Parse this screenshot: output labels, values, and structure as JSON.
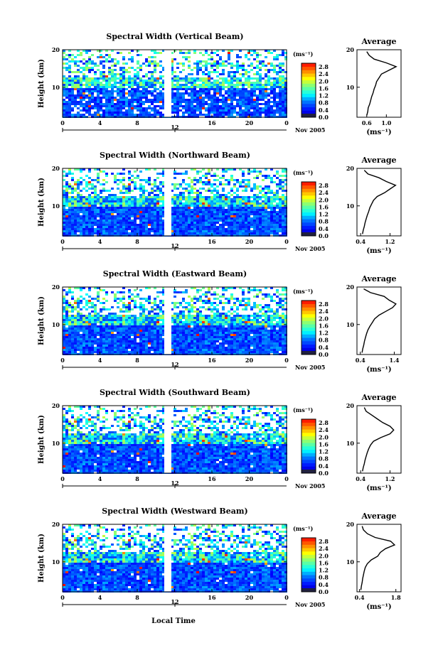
{
  "figure": {
    "xlabel": "Local Time",
    "date_label": "Nov 2005",
    "day_marker": "12",
    "colorbar_unit": "(ms⁻¹)",
    "avg_unit": "(ms⁻¹)"
  },
  "chart_data": [
    {
      "type": "heatmap",
      "title": "Spectral Width (Vertical Beam)",
      "ylabel": "Height (km)",
      "xticks": [
        "0",
        "4",
        "8",
        "12",
        "16",
        "20",
        "0"
      ],
      "yticks": [
        "10",
        "20"
      ],
      "ylim": [
        2,
        20
      ],
      "colorbar": {
        "ticks": [
          "0.0",
          "0.4",
          "0.8",
          "1.2",
          "1.6",
          "2.0",
          "2.4",
          "2.8"
        ],
        "range": [
          0.0,
          3.0
        ]
      },
      "average": {
        "title": "Average",
        "xticks": [
          "0.6",
          "1.0"
        ],
        "xlim": [
          0.4,
          1.3
        ],
        "profile": [
          [
            2.5,
            0.6
          ],
          [
            3.5,
            0.62
          ],
          [
            4.5,
            0.63
          ],
          [
            5.5,
            0.66
          ],
          [
            6.5,
            0.68
          ],
          [
            7.5,
            0.7
          ],
          [
            8.5,
            0.73
          ],
          [
            9.5,
            0.75
          ],
          [
            10.5,
            0.78
          ],
          [
            11.5,
            0.8
          ],
          [
            12.5,
            0.85
          ],
          [
            13.5,
            0.9
          ],
          [
            14.5,
            1.05
          ],
          [
            15.5,
            1.2
          ],
          [
            16.5,
            1.0
          ],
          [
            17.5,
            0.75
          ],
          [
            18.5,
            0.65
          ],
          [
            19.5,
            0.6
          ]
        ]
      }
    },
    {
      "type": "heatmap",
      "title": "Spectral Width (Northward Beam)",
      "ylabel": "Height (km)",
      "xticks": [
        "0",
        "4",
        "8",
        "12",
        "16",
        "20",
        "0"
      ],
      "yticks": [
        "10",
        "20"
      ],
      "ylim": [
        2,
        20
      ],
      "colorbar": {
        "ticks": [
          "0.0",
          "0.4",
          "0.8",
          "1.2",
          "1.6",
          "2.0",
          "2.4",
          "2.8"
        ],
        "range": [
          0.0,
          3.0
        ]
      },
      "average": {
        "title": "Average",
        "xticks": [
          "0.4",
          "1.2"
        ],
        "xlim": [
          0.3,
          1.5
        ],
        "profile": [
          [
            2.5,
            0.45
          ],
          [
            3.5,
            0.47
          ],
          [
            4.5,
            0.5
          ],
          [
            5.5,
            0.52
          ],
          [
            6.5,
            0.55
          ],
          [
            7.5,
            0.58
          ],
          [
            8.5,
            0.62
          ],
          [
            9.5,
            0.65
          ],
          [
            10.5,
            0.7
          ],
          [
            11.5,
            0.75
          ],
          [
            12.5,
            0.85
          ],
          [
            13.5,
            1.05
          ],
          [
            14.5,
            1.2
          ],
          [
            15.5,
            1.35
          ],
          [
            16.5,
            1.1
          ],
          [
            17.5,
            0.9
          ],
          [
            18.5,
            0.6
          ],
          [
            19.5,
            0.5
          ]
        ]
      }
    },
    {
      "type": "heatmap",
      "title": "Spectral Width (Eastward Beam)",
      "ylabel": "Height (km)",
      "xticks": [
        "0",
        "4",
        "8",
        "12",
        "16",
        "20",
        "0"
      ],
      "yticks": [
        "10",
        "20"
      ],
      "ylim": [
        2,
        20
      ],
      "colorbar": {
        "ticks": [
          "0.0",
          "0.4",
          "0.8",
          "1.2",
          "1.6",
          "2.0",
          "2.4",
          "2.8"
        ],
        "range": [
          0.0,
          3.0
        ]
      },
      "average": {
        "title": "Average",
        "xticks": [
          "0.4",
          "1.4"
        ],
        "xlim": [
          0.3,
          1.6
        ],
        "profile": [
          [
            2.5,
            0.45
          ],
          [
            3.5,
            0.47
          ],
          [
            4.5,
            0.5
          ],
          [
            5.5,
            0.52
          ],
          [
            6.5,
            0.55
          ],
          [
            7.5,
            0.58
          ],
          [
            8.5,
            0.62
          ],
          [
            9.5,
            0.68
          ],
          [
            10.5,
            0.75
          ],
          [
            11.5,
            0.82
          ],
          [
            12.5,
            0.95
          ],
          [
            13.5,
            1.15
          ],
          [
            14.5,
            1.35
          ],
          [
            15.5,
            1.45
          ],
          [
            16.5,
            1.25
          ],
          [
            17.5,
            1.1
          ],
          [
            18.5,
            0.7
          ],
          [
            19.5,
            0.5
          ]
        ]
      }
    },
    {
      "type": "heatmap",
      "title": "Spectral Width (Southward Beam)",
      "ylabel": "Height (km)",
      "xticks": [
        "0",
        "4",
        "8",
        "12",
        "16",
        "20",
        "0"
      ],
      "yticks": [
        "10",
        "20"
      ],
      "ylim": [
        2,
        20
      ],
      "colorbar": {
        "ticks": [
          "0.0",
          "0.4",
          "0.8",
          "1.2",
          "1.6",
          "2.0",
          "2.4",
          "2.8"
        ],
        "range": [
          0.0,
          3.0
        ]
      },
      "average": {
        "title": "Average",
        "xticks": [
          "0.4",
          "1.2"
        ],
        "xlim": [
          0.3,
          1.5
        ],
        "profile": [
          [
            2.5,
            0.45
          ],
          [
            3.5,
            0.47
          ],
          [
            4.5,
            0.5
          ],
          [
            5.5,
            0.52
          ],
          [
            6.5,
            0.55
          ],
          [
            7.5,
            0.58
          ],
          [
            8.5,
            0.62
          ],
          [
            9.5,
            0.67
          ],
          [
            10.5,
            0.75
          ],
          [
            11.5,
            0.95
          ],
          [
            12.5,
            1.2
          ],
          [
            13.5,
            1.3
          ],
          [
            14.5,
            1.2
          ],
          [
            15.5,
            1.0
          ],
          [
            16.5,
            0.85
          ],
          [
            17.5,
            0.7
          ],
          [
            18.5,
            0.55
          ],
          [
            19.5,
            0.5
          ]
        ]
      }
    },
    {
      "type": "heatmap",
      "title": "Spectral Width (Westward Beam)",
      "ylabel": "Height (km)",
      "xticks": [
        "0",
        "4",
        "8",
        "12",
        "16",
        "20",
        "0"
      ],
      "yticks": [
        "10",
        "20"
      ],
      "ylim": [
        2,
        20
      ],
      "colorbar": {
        "ticks": [
          "0.0",
          "0.4",
          "0.8",
          "1.2",
          "1.6",
          "2.0",
          "2.4",
          "2.8"
        ],
        "range": [
          0.0,
          3.0
        ]
      },
      "average": {
        "title": "Average",
        "xticks": [
          "0.4",
          "1.8"
        ],
        "xlim": [
          0.3,
          2.0
        ],
        "profile": [
          [
            2.5,
            0.45
          ],
          [
            3.5,
            0.47
          ],
          [
            4.5,
            0.5
          ],
          [
            5.5,
            0.52
          ],
          [
            6.5,
            0.55
          ],
          [
            7.5,
            0.58
          ],
          [
            8.5,
            0.62
          ],
          [
            9.5,
            0.7
          ],
          [
            10.5,
            0.85
          ],
          [
            11.5,
            1.1
          ],
          [
            12.5,
            1.2
          ],
          [
            13.5,
            1.4
          ],
          [
            14.5,
            1.75
          ],
          [
            15.5,
            1.6
          ],
          [
            16.5,
            1.0
          ],
          [
            17.5,
            0.7
          ],
          [
            18.5,
            0.55
          ],
          [
            19.5,
            0.5
          ]
        ]
      }
    }
  ]
}
